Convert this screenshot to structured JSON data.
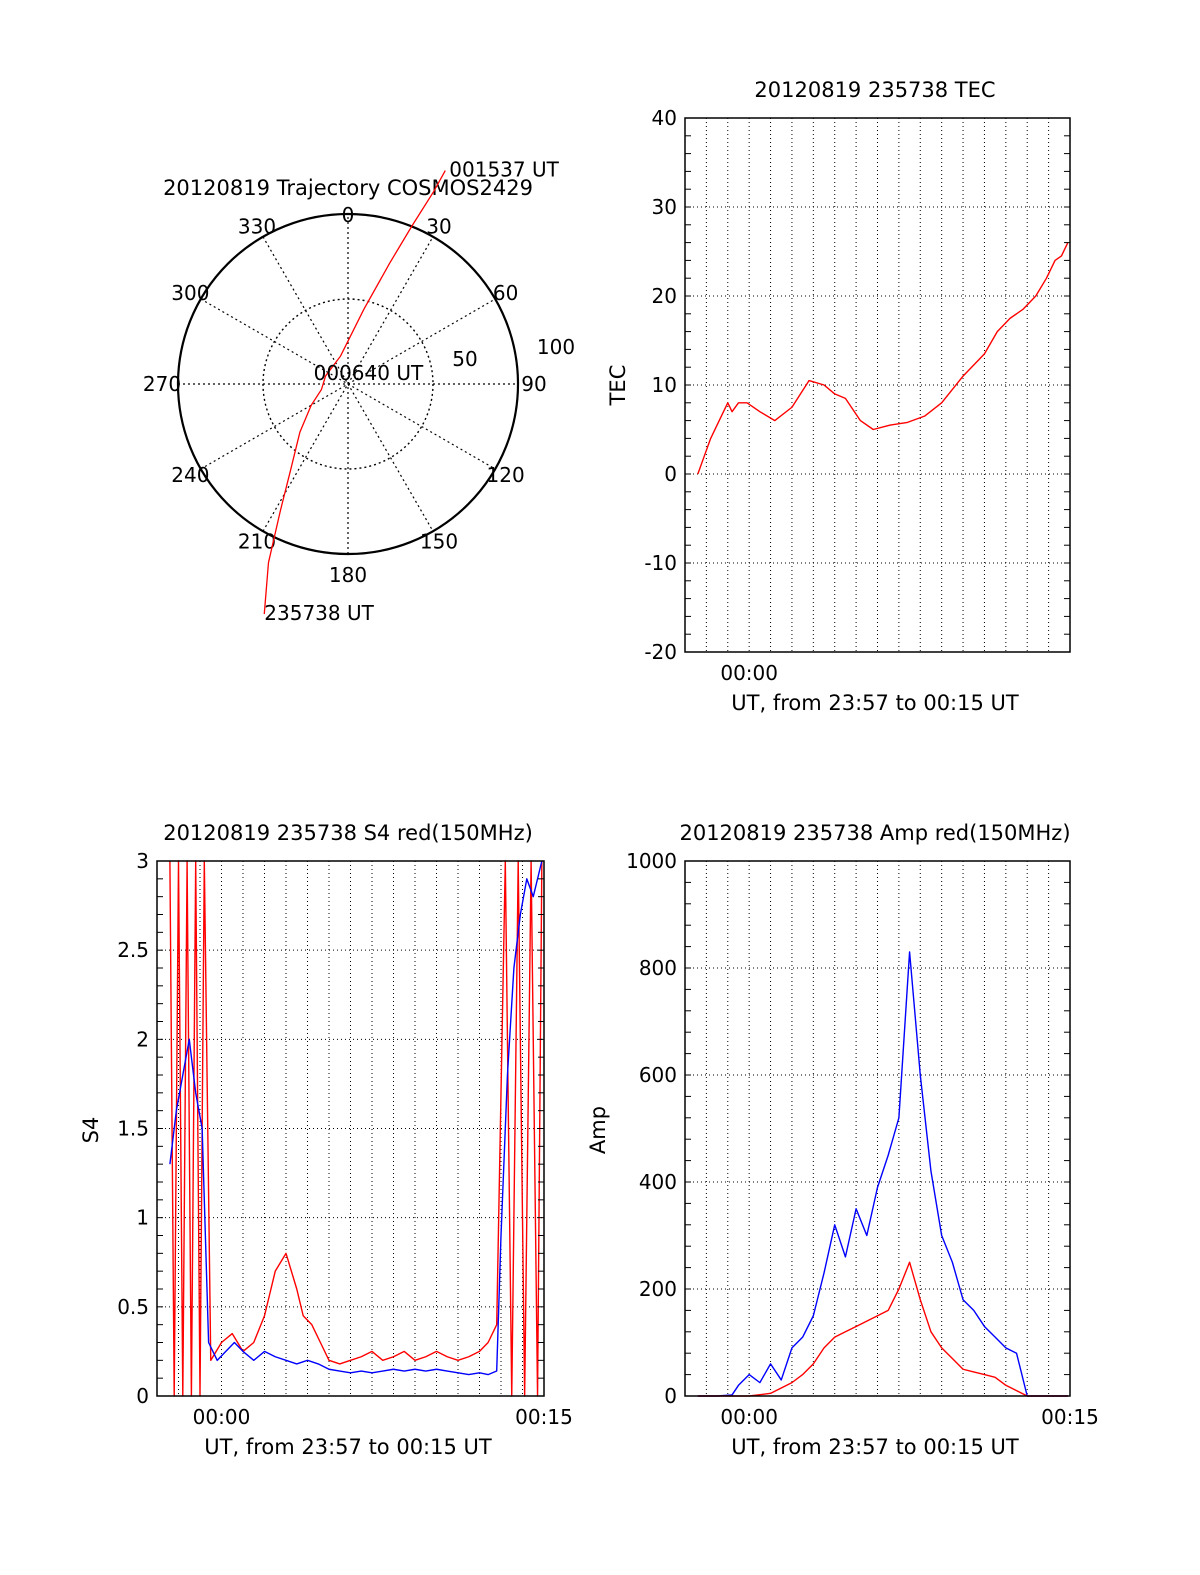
{
  "chart_data": [
    {
      "type": "polar",
      "title": "20120819 Trajectory COSMOS2429",
      "azimuth_ticks": [
        "0",
        "30",
        "60",
        "90",
        "120",
        "150",
        "180",
        "210",
        "240",
        "270",
        "300",
        "330"
      ],
      "elevation_rings": [
        50,
        100
      ],
      "elevation_ring_labels": [
        "50",
        "100"
      ],
      "color": "#ff0000",
      "trajectory": [
        {
          "az": 200,
          "el": 144
        },
        {
          "az": 204,
          "el": 115
        },
        {
          "az": 208,
          "el": 85
        },
        {
          "az": 214,
          "el": 60
        },
        {
          "az": 225,
          "el": 40
        },
        {
          "az": 240,
          "el": 25
        },
        {
          "az": 258,
          "el": 16
        },
        {
          "az": 290,
          "el": 14
        },
        {
          "az": 345,
          "el": 17
        },
        {
          "az": 12,
          "el": 45
        },
        {
          "az": 19,
          "el": 75
        },
        {
          "az": 22,
          "el": 100
        },
        {
          "az": 24,
          "el": 124
        },
        {
          "az": 24.5,
          "el": 138
        }
      ],
      "annotations": [
        {
          "text": "235738 UT",
          "az": 200,
          "el": 144
        },
        {
          "text": "000640 UT",
          "az": 290,
          "el": 14
        },
        {
          "text": "001537 UT",
          "az": 24.5,
          "el": 138
        }
      ]
    },
    {
      "type": "line",
      "title": "20120819 235738 TEC",
      "xlabel": "UT, from 23:57 to 00:15 UT",
      "ylabel": "TEC",
      "xlim": [
        0,
        18
      ],
      "ylim": [
        -20,
        40
      ],
      "yticks": [
        "-20",
        "-10",
        "0",
        "10",
        "20",
        "30",
        "40"
      ],
      "xtick_labels": [
        {
          "x": 3,
          "label": "00:00"
        }
      ],
      "grid": true,
      "series": [
        {
          "color": "#ff0000",
          "x": [
            0.6,
            0.9,
            1.2,
            1.6,
            2.0,
            2.2,
            2.5,
            2.9,
            3.5,
            4.2,
            5.0,
            5.8,
            6.5,
            7.0,
            7.5,
            8.2,
            8.8,
            9.6,
            10.4,
            11.2,
            12.0,
            13.0,
            14.0,
            14.6,
            15.2,
            15.8,
            16.4,
            16.9,
            17.3,
            17.6,
            17.9
          ],
          "y": [
            0,
            2,
            4,
            6,
            8,
            7,
            8,
            8,
            7,
            6,
            7.5,
            10.5,
            10,
            9,
            8.5,
            6,
            5,
            5.5,
            5.8,
            6.5,
            8,
            11,
            13.5,
            16,
            17.5,
            18.5,
            20,
            22,
            24,
            24.5,
            26
          ]
        }
      ]
    },
    {
      "type": "line",
      "title": "20120819 235738 S4 red(150MHz)",
      "xlabel": "UT, from 23:57 to 00:15 UT",
      "ylabel": "S4",
      "xlim": [
        0,
        18
      ],
      "ylim": [
        0,
        3
      ],
      "yticks": [
        "0",
        "0.5",
        "1",
        "1.5",
        "2",
        "2.5",
        "3"
      ],
      "xtick_labels": [
        {
          "x": 3,
          "label": "00:00"
        },
        {
          "x": 18,
          "label": "00:15"
        }
      ],
      "grid": true,
      "series": [
        {
          "color": "#ff0000",
          "x": [
            0.6,
            0.8,
            1.0,
            1.2,
            1.4,
            1.6,
            1.8,
            2.0,
            2.2,
            2.5,
            3.0,
            3.5,
            4.0,
            4.5,
            5.0,
            5.5,
            6.0,
            6.5,
            6.8,
            7.2,
            7.6,
            8.0,
            8.5,
            9.0,
            9.5,
            10.0,
            10.5,
            11.0,
            11.5,
            12.0,
            12.5,
            13.0,
            13.5,
            14.0,
            14.5,
            15.0,
            15.4,
            15.8,
            16.2,
            16.5,
            16.8,
            17.1,
            17.4,
            17.7,
            17.9
          ],
          "y": [
            3,
            0,
            3,
            0,
            3,
            0,
            3,
            0,
            3,
            0.2,
            0.3,
            0.35,
            0.25,
            0.3,
            0.45,
            0.7,
            0.8,
            0.6,
            0.45,
            0.4,
            0.3,
            0.2,
            0.18,
            0.2,
            0.22,
            0.25,
            0.2,
            0.22,
            0.25,
            0.2,
            0.22,
            0.25,
            0.22,
            0.2,
            0.22,
            0.25,
            0.3,
            0.4,
            3,
            0,
            3,
            0,
            3,
            0,
            3
          ]
        },
        {
          "color": "#0000ff",
          "x": [
            0.6,
            0.9,
            1.2,
            1.5,
            1.8,
            2.1,
            2.4,
            2.8,
            3.2,
            3.6,
            4.0,
            4.5,
            5.0,
            5.5,
            6.0,
            6.5,
            7.0,
            7.5,
            8.0,
            8.5,
            9.0,
            9.5,
            10.0,
            10.5,
            11.0,
            11.5,
            12.0,
            12.5,
            13.0,
            13.5,
            14.0,
            14.5,
            15.0,
            15.4,
            15.8,
            16.0,
            16.3,
            16.6,
            16.9,
            17.2,
            17.5,
            17.9
          ],
          "y": [
            1.3,
            1.6,
            1.8,
            2.0,
            1.7,
            1.5,
            0.3,
            0.2,
            0.25,
            0.3,
            0.25,
            0.2,
            0.25,
            0.22,
            0.2,
            0.18,
            0.2,
            0.18,
            0.15,
            0.14,
            0.13,
            0.14,
            0.13,
            0.14,
            0.15,
            0.14,
            0.15,
            0.14,
            0.15,
            0.14,
            0.13,
            0.12,
            0.13,
            0.12,
            0.14,
            0.9,
            1.8,
            2.4,
            2.7,
            2.9,
            2.8,
            3.0
          ]
        }
      ]
    },
    {
      "type": "line",
      "title": "20120819 235738 Amp red(150MHz)",
      "xlabel": "UT, from 23:57 to 00:15 UT",
      "ylabel": "Amp",
      "xlim": [
        0,
        18
      ],
      "ylim": [
        0,
        1000
      ],
      "yticks": [
        "0",
        "200",
        "400",
        "600",
        "800",
        "1000"
      ],
      "xtick_labels": [
        {
          "x": 3,
          "label": "00:00"
        },
        {
          "x": 18,
          "label": "00:15"
        }
      ],
      "grid": true,
      "series": [
        {
          "color": "#0000ff",
          "x": [
            0.6,
            1.5,
            2.2,
            2.5,
            3.0,
            3.5,
            4.0,
            4.5,
            5.0,
            5.5,
            6.0,
            6.5,
            7.0,
            7.5,
            8.0,
            8.5,
            9.0,
            9.5,
            10.0,
            10.5,
            11.0,
            11.5,
            12.0,
            12.5,
            13.0,
            13.5,
            14.0,
            14.5,
            15.0,
            15.5,
            16.0,
            16.5,
            17.0,
            17.9
          ],
          "y": [
            0,
            0,
            2,
            20,
            40,
            25,
            60,
            30,
            90,
            110,
            150,
            230,
            320,
            260,
            350,
            300,
            390,
            450,
            520,
            830,
            600,
            420,
            300,
            250,
            180,
            160,
            130,
            110,
            90,
            80,
            0,
            0,
            0,
            0
          ]
        },
        {
          "color": "#ff0000",
          "x": [
            0.6,
            3.0,
            4.0,
            4.5,
            5.0,
            5.5,
            6.0,
            6.5,
            7.0,
            7.5,
            8.0,
            8.5,
            9.0,
            9.5,
            10.0,
            10.5,
            11.0,
            11.5,
            12.0,
            12.5,
            13.0,
            13.5,
            14.0,
            14.5,
            15.0,
            15.5,
            16.0,
            17.9
          ],
          "y": [
            0,
            0,
            5,
            15,
            25,
            40,
            60,
            90,
            110,
            120,
            130,
            140,
            150,
            160,
            200,
            250,
            180,
            120,
            90,
            70,
            50,
            45,
            40,
            35,
            20,
            10,
            0,
            0
          ]
        }
      ]
    }
  ]
}
